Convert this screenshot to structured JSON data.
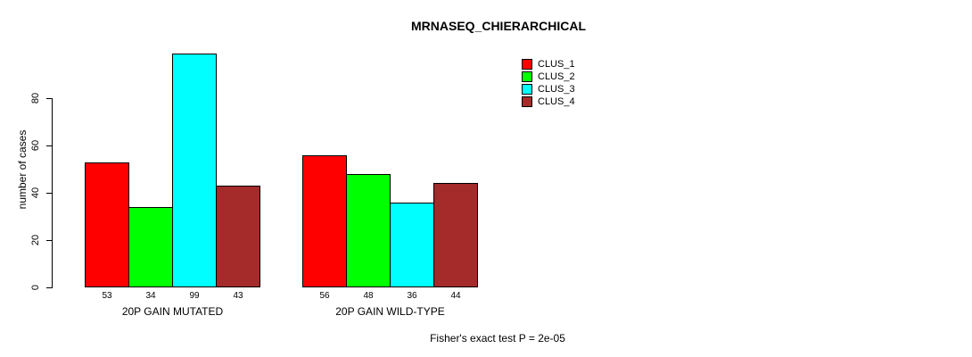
{
  "chart_data": {
    "type": "bar",
    "title": "MRNASEQ_CHIERARCHICAL",
    "ylabel": "number of cases",
    "xlabel": "",
    "categories": [
      "20P GAIN MUTATED",
      "20P GAIN WILD-TYPE"
    ],
    "series": [
      {
        "name": "CLUS_1",
        "color": "#ff0000",
        "values": [
          53,
          56
        ]
      },
      {
        "name": "CLUS_2",
        "color": "#00ff00",
        "values": [
          34,
          48
        ]
      },
      {
        "name": "CLUS_3",
        "color": "#00ffff",
        "values": [
          99,
          36
        ]
      },
      {
        "name": "CLUS_4",
        "color": "#a52a2a",
        "values": [
          43,
          44
        ]
      }
    ],
    "y_ticks": [
      0,
      20,
      40,
      60,
      80
    ],
    "ylim": [
      0,
      100
    ],
    "grid": false,
    "legend_position": "top-right",
    "bar_value_labels": true,
    "annotation": "Fisher's exact test P = 2e-05"
  }
}
